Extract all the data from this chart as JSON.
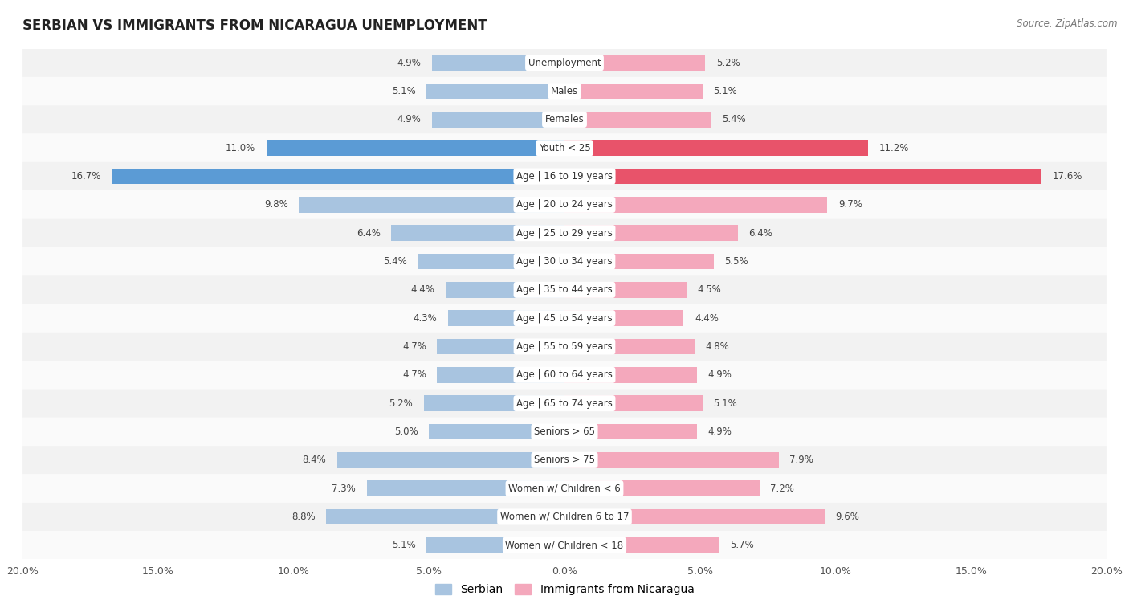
{
  "title": "SERBIAN VS IMMIGRANTS FROM NICARAGUA UNEMPLOYMENT",
  "source": "Source: ZipAtlas.com",
  "categories": [
    "Unemployment",
    "Males",
    "Females",
    "Youth < 25",
    "Age | 16 to 19 years",
    "Age | 20 to 24 years",
    "Age | 25 to 29 years",
    "Age | 30 to 34 years",
    "Age | 35 to 44 years",
    "Age | 45 to 54 years",
    "Age | 55 to 59 years",
    "Age | 60 to 64 years",
    "Age | 65 to 74 years",
    "Seniors > 65",
    "Seniors > 75",
    "Women w/ Children < 6",
    "Women w/ Children 6 to 17",
    "Women w/ Children < 18"
  ],
  "serbian": [
    4.9,
    5.1,
    4.9,
    11.0,
    16.7,
    9.8,
    6.4,
    5.4,
    4.4,
    4.3,
    4.7,
    4.7,
    5.2,
    5.0,
    8.4,
    7.3,
    8.8,
    5.1
  ],
  "nicaragua": [
    5.2,
    5.1,
    5.4,
    11.2,
    17.6,
    9.7,
    6.4,
    5.5,
    4.5,
    4.4,
    4.8,
    4.9,
    5.1,
    4.9,
    7.9,
    7.2,
    9.6,
    5.7
  ],
  "serbian_color": "#a8c4e0",
  "nicaragua_color": "#f4a8bc",
  "serbian_highlight_color": "#5b9bd5",
  "nicaragua_highlight_color": "#e8536a",
  "bg_color": "#ffffff",
  "row_bg_odd": "#f2f2f2",
  "row_bg_even": "#fafafa",
  "xlim": 20.0,
  "label_fontsize": 8.5,
  "title_fontsize": 12,
  "legend_serbian": "Serbian",
  "legend_nicaragua": "Immigrants from Nicaragua"
}
